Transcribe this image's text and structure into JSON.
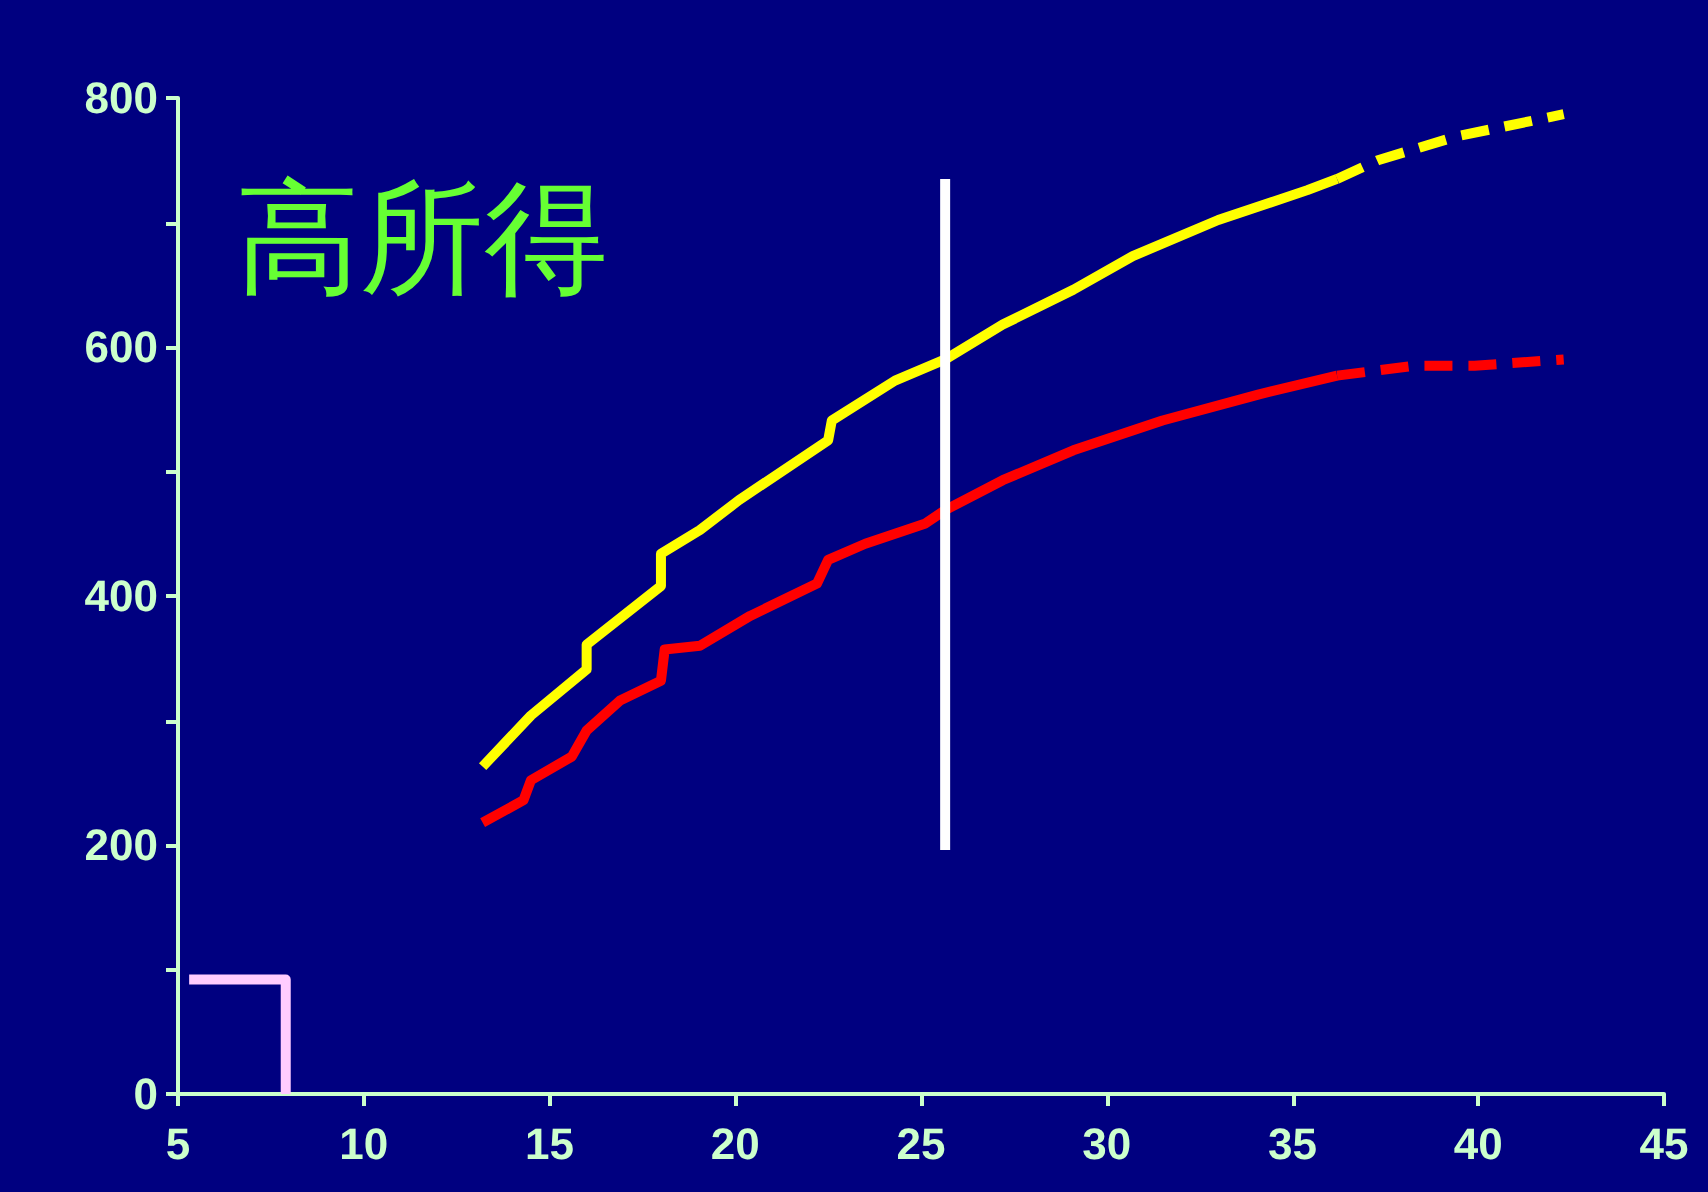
{
  "chart_data": {
    "type": "line",
    "annotations": [
      "高所得"
    ],
    "marker": "none",
    "line_style": "solid",
    "xlim": [
      5,
      45
    ],
    "xticks": [
      5,
      10,
      15,
      20,
      25,
      30,
      35,
      40,
      45
    ],
    "ylim": [
      0,
      800
    ],
    "yticks": [
      0,
      200,
      400,
      600,
      800
    ],
    "series": [
      {
        "color": "#ffff00",
        "x": [
          13.2,
          14.5,
          16.0,
          16.0,
          18.0,
          18.0,
          19.05,
          20.1,
          22.5,
          22.6,
          24.3,
          25.65,
          27.2,
          29.1,
          30.7,
          33.0,
          35.4,
          36.2
        ],
        "values": [
          263,
          304,
          341,
          361,
          408,
          434,
          453,
          477,
          525,
          541,
          573,
          590,
          618,
          646,
          673,
          702,
          726,
          735
        ]
      },
      {
        "color": "#ffff00",
        "line_style": "dashed",
        "x": [
          36.2,
          37.3,
          39.4,
          42.3
        ],
        "values": [
          735,
          750,
          769,
          787
        ]
      },
      {
        "color": "#ff0000",
        "x": [
          13.2,
          14.3,
          14.5,
          15.6,
          16.0,
          16.9,
          18.0,
          18.1,
          19.05,
          20.4,
          22.2,
          22.5,
          23.5,
          25.1,
          25.65,
          27.2,
          29.1,
          31.5,
          34.1,
          36.2
        ],
        "values": [
          218,
          236,
          252,
          271,
          292,
          316,
          332,
          357,
          360,
          384,
          410,
          429,
          442,
          458,
          469,
          493,
          517,
          541,
          562,
          577
        ]
      },
      {
        "color": "#ff0000",
        "line_style": "dashed",
        "x": [
          36.2,
          38.3,
          39.9,
          42.3
        ],
        "values": [
          577,
          585,
          585,
          590
        ]
      },
      {
        "color": "#ffffff",
        "x": [
          25.65,
          25.65
        ],
        "values": [
          196,
          735
        ]
      },
      {
        "color": "#ffccff",
        "x": [
          5.3,
          7.9,
          7.9
        ],
        "values": [
          92,
          92,
          0
        ]
      }
    ]
  }
}
